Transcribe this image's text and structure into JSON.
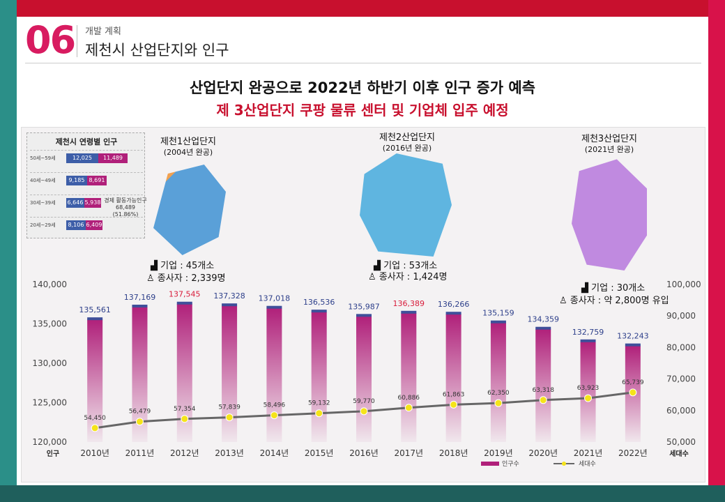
{
  "header": {
    "number": "06",
    "subtitle": "개발 계획",
    "title": "제천시 산업단지와 인구"
  },
  "headline": {
    "line1": "산업단지 완공으로 2022년 하반기 이후 인구 증가 예측",
    "line2": "제 3산업단지 쿠팡 물류 센터 및 기업체 입주 예정"
  },
  "inset": {
    "title": "제천시 연령별 인구",
    "rows": [
      {
        "age": "50세~59세",
        "a": "12,025",
        "b": "11,489"
      },
      {
        "age": "40세~49세",
        "a": "9,185",
        "b": "8,691"
      },
      {
        "age": "30세~39세",
        "a": "6,646",
        "b": "5,938"
      },
      {
        "age": "20세~29세",
        "a": "8,106",
        "b": "6,409"
      }
    ],
    "note": "경제 활동가능인구 68,489 (51.86%)"
  },
  "sites": [
    {
      "title": "제천1산업단지",
      "sub": "(2004년 완공)",
      "companies": "기업 : 45개소",
      "workers": "종사자 : 2,339명"
    },
    {
      "title": "제천2산업단지",
      "sub": "(2016년 완공)",
      "companies": "기업 : 53개소",
      "workers": "종사자 : 1,424명"
    },
    {
      "title": "제천3산업단지",
      "sub": "(2021년 완공)",
      "companies": "기업 : 30개소",
      "workers": "종사자 : 약 2,800명 유입"
    }
  ],
  "colors": {
    "bar_top": "#b0207a",
    "bar_cap": "#3f4f9a",
    "line": "#666666",
    "marker": "#f5e31a",
    "highlight_label": "#d81b3a",
    "label": "#2d3f8a"
  },
  "chart_data": {
    "type": "bar",
    "categories": [
      "2010년",
      "2011년",
      "2012년",
      "2013년",
      "2014년",
      "2015년",
      "2016년",
      "2017년",
      "2018년",
      "2019년",
      "2020년",
      "2021년",
      "2022년"
    ],
    "series": [
      {
        "name": "인구수",
        "axis": "left",
        "values": [
          135561,
          137169,
          137545,
          137328,
          137018,
          136536,
          135987,
          136389,
          136266,
          135159,
          134359,
          132759,
          132243
        ],
        "labels": [
          "135,561",
          "137,169",
          "137,545",
          "137,328",
          "137,018",
          "136,536",
          "135,987",
          "136,389",
          "136,266",
          "135,159",
          "134,359",
          "132,759",
          "132,243"
        ],
        "highlighted": [
          "2012년",
          "2017년"
        ]
      },
      {
        "name": "세대수",
        "axis": "right",
        "values": [
          54450,
          56479,
          57354,
          57839,
          58496,
          59132,
          59770,
          60886,
          61863,
          62350,
          63318,
          63923,
          65739
        ],
        "labels": [
          "54,450",
          "56,479",
          "57,354",
          "57,839",
          "58,496",
          "59,132",
          "59,770",
          "60,886",
          "61,863",
          "62,350",
          "63,318",
          "63,923",
          "65,739"
        ]
      }
    ],
    "ylabel_left": "인구",
    "ylabel_right": "세대수",
    "ylim_left": [
      120000,
      140000
    ],
    "yticks_left": [
      "120,000",
      "125,000",
      "130,000",
      "135,000",
      "140,000"
    ],
    "ylim_right": [
      50000,
      100000
    ],
    "yticks_right": [
      "50,000",
      "60,000",
      "70,000",
      "80,000",
      "90,000",
      "100,000"
    ],
    "legend_position": "bottom-right"
  }
}
